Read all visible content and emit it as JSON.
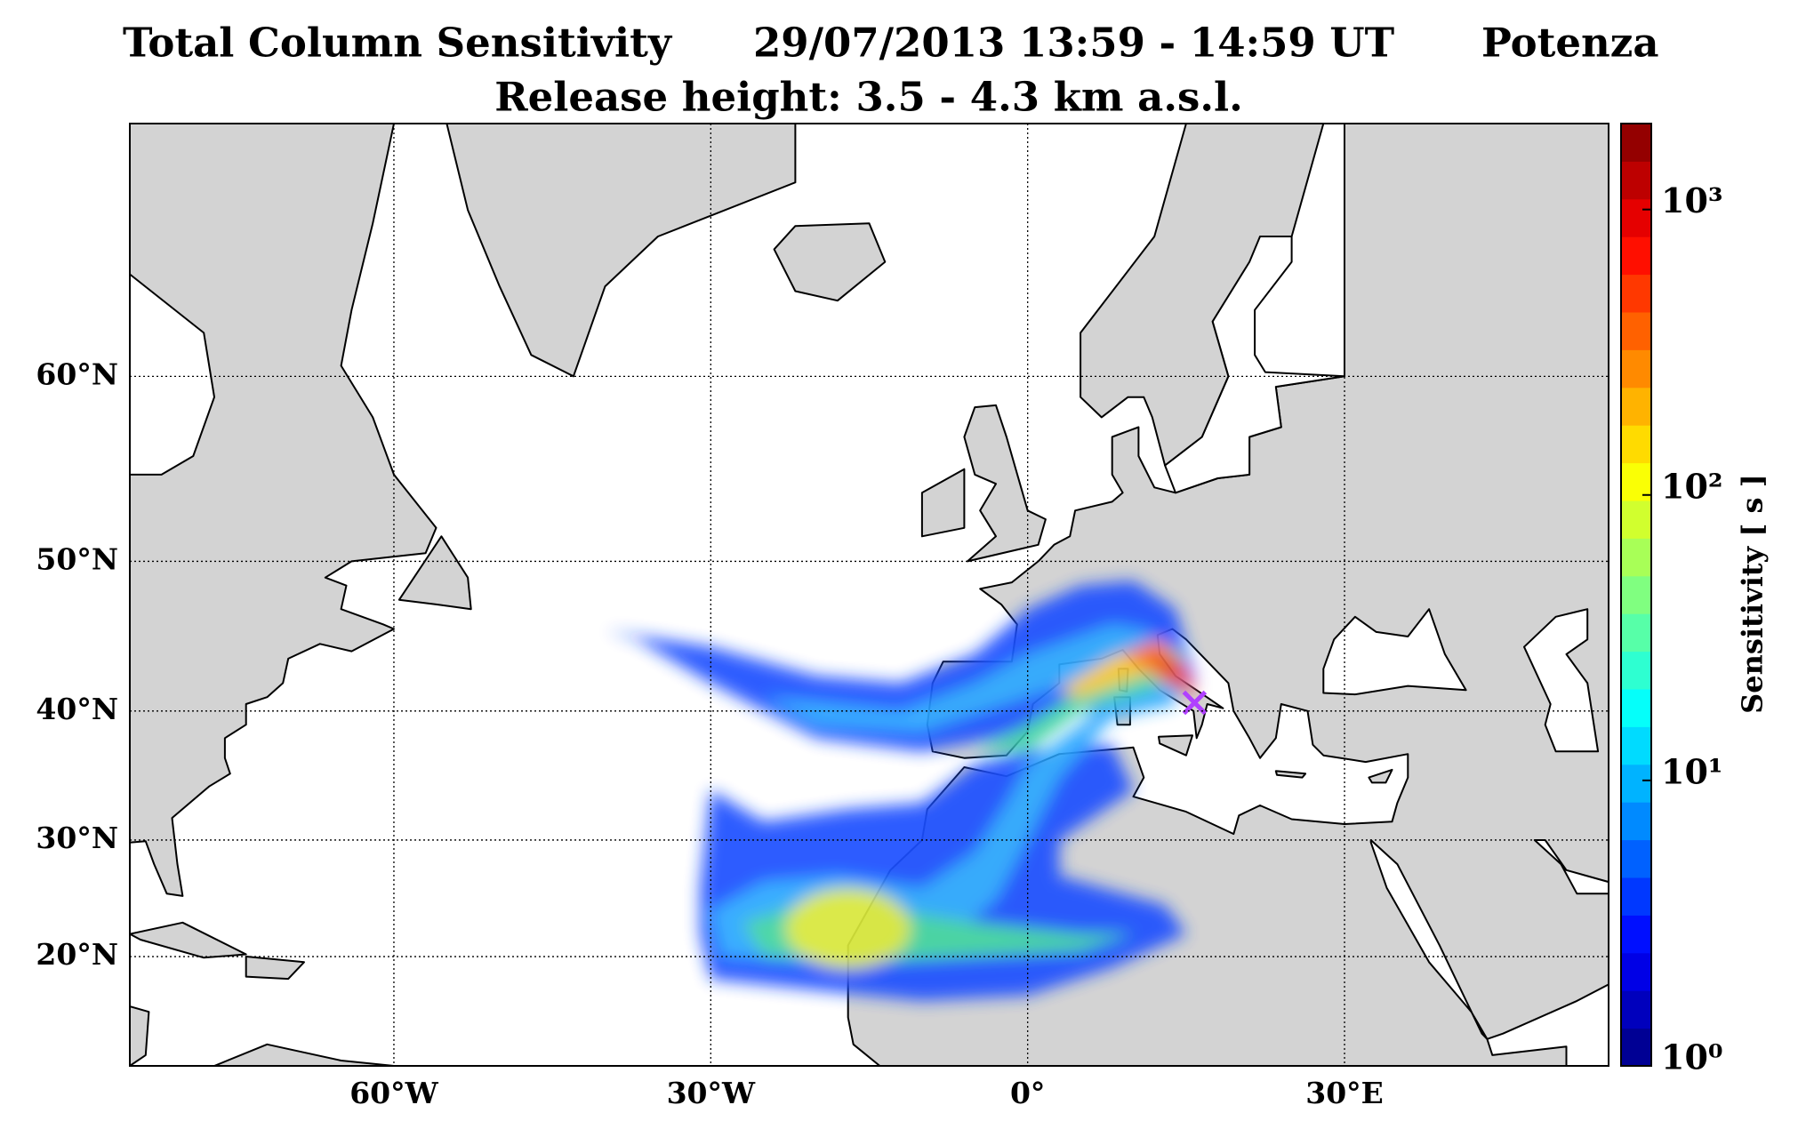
{
  "title": "Total Column Sensitivity",
  "time": "29/07/2013 13:59 - 14:59 UT",
  "site": "Potenza",
  "subtitle": "Release height: 3.5 - 4.3 km a.s.l.",
  "map": {
    "projection": "mercator",
    "xlim": [
      -85,
      55
    ],
    "ylim": [
      10,
      70
    ],
    "grid": true,
    "xticks": [
      {
        "value": -60,
        "label": "60°W"
      },
      {
        "value": -30,
        "label": "30°W"
      },
      {
        "value": 0,
        "label": "0°"
      },
      {
        "value": 30,
        "label": "30°E"
      }
    ],
    "yticks": [
      {
        "value": 20,
        "label": "20°N"
      },
      {
        "value": 30,
        "label": "30°N"
      },
      {
        "value": 40,
        "label": "40°N"
      },
      {
        "value": 50,
        "label": "50°N"
      },
      {
        "value": 60,
        "label": "60°N"
      }
    ]
  },
  "colorbar": {
    "label": "Sensitivity [ s ]",
    "scale": "log",
    "colormap": "jet",
    "lim": [
      1,
      2000
    ],
    "ticks": [
      {
        "value": 1,
        "label": "10⁰"
      },
      {
        "value": 10,
        "label": "10¹"
      },
      {
        "value": 100,
        "label": "10²"
      },
      {
        "value": 1000,
        "label": "10³"
      }
    ]
  }
}
